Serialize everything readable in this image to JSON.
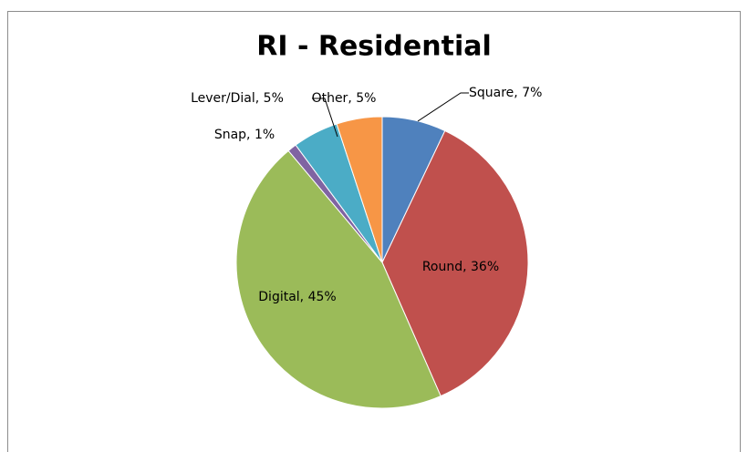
{
  "chart_data": {
    "type": "pie",
    "title": "RI - Residential",
    "values": [
      7,
      36,
      45,
      1,
      5,
      5
    ],
    "value_labels": [
      "Square, 7%",
      "Round, 36%",
      "Digital, 45%",
      "Snap, 1%",
      "Lever/Dial, 5%",
      "Other, 5%"
    ],
    "colors": [
      "#4f81bd",
      "#c0504d",
      "#9bbb59",
      "#8064a2",
      "#4bacc6",
      "#f79646"
    ]
  }
}
